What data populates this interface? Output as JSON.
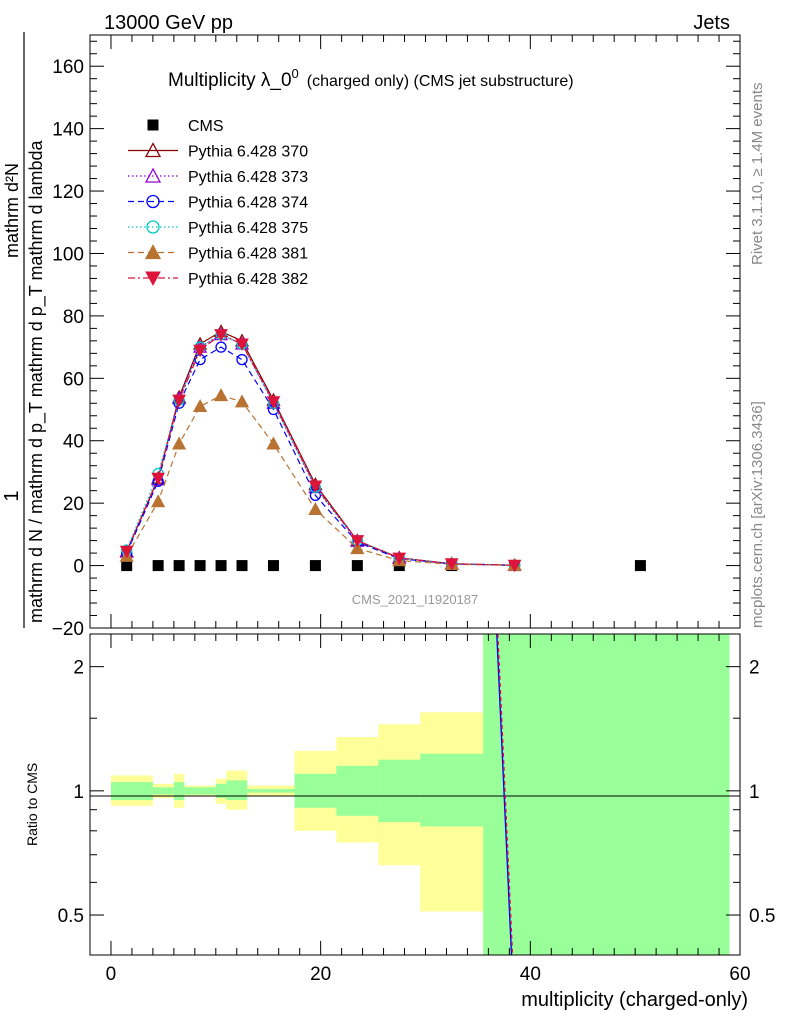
{
  "header": {
    "left": "13000 GeV pp",
    "right": "Jets"
  },
  "side_labels": {
    "rivet": "Rivet 3.1.10, ≥ 1.4M events",
    "mcplots": "mcplots.cern.ch [arXiv:1306.3436]"
  },
  "main_plot": {
    "title_main": "Multiplicity λ_0",
    "title_sup": "0",
    "title_detail": "(charged only) (CMS jet substructure)",
    "ylabel_numerator": "1",
    "ylabel_denominator": "mathrm d N / mathrm d p_T mathrm d p_T mathrm d lambda",
    "ylabel_right": "mathrm d²N",
    "watermark": "CMS_2021_I1920187"
  },
  "ratio_plot": {
    "ylabel": "Ratio to CMS",
    "xlabel": "multiplicity (charged-only)"
  },
  "chart_data": [
    {
      "type": "line",
      "panel": "main",
      "xlim": [
        -2,
        60
      ],
      "ylim": [
        -20,
        170
      ],
      "yticks": [
        -20,
        0,
        20,
        40,
        60,
        80,
        100,
        120,
        140,
        160
      ],
      "xticks": [
        0,
        20,
        40,
        60
      ],
      "legend_position": "top-left",
      "series": [
        {
          "name": "CMS",
          "color": "#000000",
          "marker": "square",
          "line": "none",
          "x": [
            1.5,
            4.5,
            6.5,
            8.5,
            10.5,
            12.5,
            15.5,
            19.5,
            23.5,
            27.5,
            32.5,
            38.5,
            50.5
          ],
          "y": [
            0,
            0,
            0,
            0,
            0,
            0,
            0,
            0,
            0,
            0,
            0,
            0,
            0
          ]
        },
        {
          "name": "Pythia 6.428 370",
          "color": "#8b0000",
          "marker": "triangle-open",
          "line": "solid",
          "x": [
            1.5,
            4.5,
            6.5,
            8.5,
            10.5,
            12.5,
            15.5,
            19.5,
            23.5,
            27.5,
            32.5,
            38.5
          ],
          "y": [
            4.5,
            28,
            54,
            71,
            75,
            72,
            53,
            26,
            8,
            2.5,
            0.6,
            0.1
          ]
        },
        {
          "name": "Pythia 6.428 373",
          "color": "#9400d3",
          "marker": "triangle-open",
          "line": "dotted",
          "x": [
            1.5,
            4.5,
            6.5,
            8.5,
            10.5,
            12.5,
            15.5,
            19.5,
            23.5,
            27.5,
            32.5,
            38.5
          ],
          "y": [
            4.3,
            27.5,
            53.5,
            70,
            74,
            71,
            52,
            25,
            7.8,
            2.3,
            0.5,
            0.1
          ]
        },
        {
          "name": "Pythia 6.428 374",
          "color": "#0000ff",
          "marker": "circle-open",
          "line": "dashed",
          "x": [
            1.5,
            4.5,
            6.5,
            8.5,
            10.5,
            12.5,
            15.5,
            19.5,
            23.5,
            27.5,
            32.5,
            38.5
          ],
          "y": [
            4.0,
            27,
            52,
            66,
            70,
            66,
            50,
            22.5,
            7.5,
            2.2,
            0.5,
            0.1
          ]
        },
        {
          "name": "Pythia 6.428 375",
          "color": "#00c8c8",
          "marker": "circle-open",
          "line": "dotted",
          "x": [
            1.5,
            4.5,
            6.5,
            8.5,
            10.5,
            12.5,
            15.5,
            19.5,
            23.5,
            27.5,
            32.5,
            38.5
          ],
          "y": [
            5.0,
            29.5,
            53,
            70,
            74,
            71,
            52,
            25,
            8,
            2.4,
            0.6,
            0.1
          ]
        },
        {
          "name": "Pythia 6.428 381",
          "color": "#b87333",
          "marker": "triangle-filled",
          "line": "dashed",
          "x": [
            1.5,
            4.5,
            6.5,
            8.5,
            10.5,
            12.5,
            15.5,
            19.5,
            23.5,
            27.5,
            32.5,
            38.5
          ],
          "y": [
            3.0,
            20.5,
            39,
            51,
            54.5,
            52.5,
            39,
            18,
            5.5,
            1.6,
            0.4,
            0.1
          ]
        },
        {
          "name": "Pythia 6.428 382",
          "color": "#dc143c",
          "marker": "triangle-down-filled",
          "line": "dashdot",
          "x": [
            1.5,
            4.5,
            6.5,
            8.5,
            10.5,
            12.5,
            15.5,
            19.5,
            23.5,
            27.5,
            32.5,
            38.5
          ],
          "y": [
            4.6,
            28,
            53,
            69,
            74,
            71,
            52.5,
            25.5,
            8,
            2.4,
            0.6,
            0.1
          ]
        }
      ]
    },
    {
      "type": "area",
      "panel": "ratio",
      "xlim": [
        -2,
        60
      ],
      "ylim": [
        0.4,
        2.4
      ],
      "log_y": true,
      "yticks": [
        0.5,
        1,
        2
      ],
      "xticks": [
        0,
        20,
        40,
        60
      ],
      "reference_line": 1,
      "bands": {
        "edges": [
          0,
          3,
          4,
          6,
          7,
          8,
          10,
          11,
          13,
          14,
          17.5,
          21.5,
          25.5,
          29.5,
          35.5,
          59
        ],
        "yellow_lo": [
          0.92,
          0.92,
          0.96,
          0.91,
          0.97,
          0.97,
          0.93,
          0.9,
          0.97,
          0.97,
          0.8,
          0.75,
          0.66,
          0.51,
          0.1
        ],
        "yellow_hi": [
          1.09,
          1.09,
          1.04,
          1.1,
          1.03,
          1.03,
          1.07,
          1.12,
          1.03,
          1.03,
          1.25,
          1.35,
          1.45,
          1.55,
          2.4
        ],
        "green_lo": [
          0.95,
          0.95,
          0.98,
          0.95,
          0.98,
          0.98,
          0.96,
          0.95,
          0.99,
          0.99,
          0.91,
          0.87,
          0.84,
          0.82,
          0.1
        ],
        "green_hi": [
          1.05,
          1.05,
          1.02,
          1.05,
          1.02,
          1.02,
          1.04,
          1.06,
          1.01,
          1.01,
          1.1,
          1.15,
          1.19,
          1.23,
          2.4
        ]
      },
      "series": [
        {
          "name": "Pythia 6.428 374",
          "color": "#0000ff",
          "x": [
            36.8,
            38.2
          ],
          "y": [
            2.4,
            0.4
          ]
        },
        {
          "name": "Pythia 6.428 382",
          "color": "#dc143c",
          "x": [
            36.9,
            38.3
          ],
          "y": [
            2.4,
            0.4
          ]
        }
      ]
    }
  ]
}
